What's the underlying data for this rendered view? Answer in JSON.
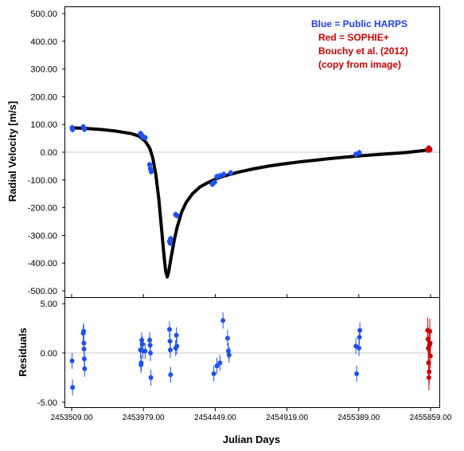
{
  "chart_data": [
    {
      "type": "scatter",
      "panel": "radial-velocity",
      "xlabel": "Julian Days",
      "ylabel": "Radial Velocity [m/s]",
      "xlim": [
        2453509.0,
        2455859.0
      ],
      "ylim": [
        -500.0,
        500.0
      ],
      "x_ticks": [
        "2453509.00",
        "2453979.00",
        "2454449.00",
        "2454919.00",
        "2455389.00",
        "2455859.00"
      ],
      "y_ticks": [
        "500.00",
        "400.00",
        "300.00",
        "200.00",
        "100.00",
        "0.00",
        "-100.00",
        "-200.00",
        "-300.00",
        "-400.00",
        "-500.00"
      ],
      "legend": {
        "placement": "top-right",
        "lines": [
          {
            "text": "Blue = Public HARPS",
            "color": "#1f3ff0"
          },
          {
            "text": "Red = SOPHIE+",
            "color": "#cc0000"
          },
          {
            "text": "Bouchy et al. (2012)",
            "color": "#cc0000"
          },
          {
            "text": "(copy from image)",
            "color": "#cc0000"
          }
        ]
      },
      "model_curve": {
        "name": "orbit model",
        "color": "#000000",
        "x": [
          2453509,
          2453600,
          2453700,
          2453800,
          2453900,
          2453950,
          2453990,
          2454020,
          2454040,
          2454060,
          2454080,
          2454100,
          2454115,
          2454125,
          2454135,
          2454145,
          2454160,
          2454180,
          2454200,
          2454230,
          2454260,
          2454300,
          2454350,
          2454400,
          2454450,
          2454500,
          2454600,
          2454700,
          2454800,
          2454900,
          2455000,
          2455100,
          2455200,
          2455300,
          2455400,
          2455500,
          2455600,
          2455700,
          2455800,
          2455859
        ],
        "y": [
          88,
          86,
          82,
          76,
          67,
          58,
          40,
          15,
          -20,
          -80,
          -170,
          -290,
          -380,
          -430,
          -450,
          -430,
          -380,
          -320,
          -270,
          -215,
          -180,
          -150,
          -125,
          -110,
          -97,
          -87,
          -72,
          -60,
          -50,
          -42,
          -35,
          -29,
          -23,
          -18,
          -13,
          -9,
          -5,
          -1,
          5,
          10
        ]
      },
      "series": [
        {
          "name": "Blue = Public HARPS",
          "color": "#1f50f0",
          "x": [
            2453512,
            2453515,
            2453585,
            2453588,
            2453590,
            2453593,
            2453960,
            2453965,
            2453970,
            2453975,
            2453990,
            2454020,
            2454025,
            2454030,
            2454150,
            2454155,
            2454157,
            2454190,
            2454198,
            2454430,
            2454445,
            2454460,
            2454480,
            2454505,
            2454550,
            2455370,
            2455392
          ],
          "y": [
            88,
            82,
            91,
            88,
            85,
            83,
            67,
            64,
            58,
            55,
            52,
            -45,
            -60,
            -70,
            -322,
            -328,
            -312,
            -225,
            -228,
            -115,
            -108,
            -88,
            -85,
            -80,
            -75,
            -8,
            -2
          ]
        },
        {
          "name": "Red = SOPHIE+",
          "color": "#cc0000",
          "x": [
            2455840,
            2455843,
            2455846,
            2455849,
            2455852,
            2455855
          ],
          "y": [
            8,
            12,
            14,
            10,
            13,
            9
          ]
        }
      ]
    },
    {
      "type": "scatter",
      "panel": "residuals",
      "xlabel": "Julian Days",
      "ylabel": "Residuals",
      "xlim": [
        2453509.0,
        2455859.0
      ],
      "ylim": [
        -5.5,
        5.5
      ],
      "x_ticks": [
        "2453509.00",
        "2453979.00",
        "2454449.00",
        "2454919.00",
        "2455389.00",
        "2455859.00"
      ],
      "y_ticks": [
        "5.00",
        "0.00",
        "-5.00"
      ],
      "series": [
        {
          "name": "Blue = Public HARPS",
          "color": "#1f50f0",
          "x": [
            2453512,
            2453515,
            2453585,
            2453588,
            2453589,
            2453590,
            2453592,
            2453594,
            2453960,
            2453963,
            2453965,
            2453968,
            2453972,
            2453975,
            2453990,
            2454020,
            2454023,
            2454025,
            2454028,
            2454150,
            2454153,
            2454155,
            2454157,
            2454190,
            2454195,
            2454198,
            2454440,
            2454460,
            2454480,
            2454500,
            2454530,
            2454535,
            2454540,
            2455370,
            2455375,
            2455390,
            2455393,
            2455396
          ],
          "y": [
            -0.8,
            -3.5,
            2.0,
            2.2,
            1.0,
            0.4,
            -0.6,
            -1.6,
            0.3,
            -1.2,
            -1.0,
            1.3,
            0.9,
            0.2,
            0.2,
            1.3,
            0.8,
            0.0,
            -2.5,
            2.4,
            1.2,
            0.3,
            -2.2,
            0.5,
            1.8,
            0.7,
            -2.1,
            -1.3,
            -1.0,
            3.3,
            1.5,
            0.2,
            -0.2,
            0.7,
            -2.1,
            0.5,
            1.6,
            2.3
          ]
        },
        {
          "name": "Red = SOPHIE+",
          "color": "#cc0000",
          "x": [
            2455840,
            2455842,
            2455844,
            2455846,
            2455848,
            2455850,
            2455852,
            2455854,
            2455856,
            2455858
          ],
          "y": [
            2.3,
            1.4,
            0.5,
            -1.0,
            -2.5,
            -1.9,
            0.8,
            2.2,
            1.0,
            -0.3
          ]
        }
      ]
    }
  ]
}
